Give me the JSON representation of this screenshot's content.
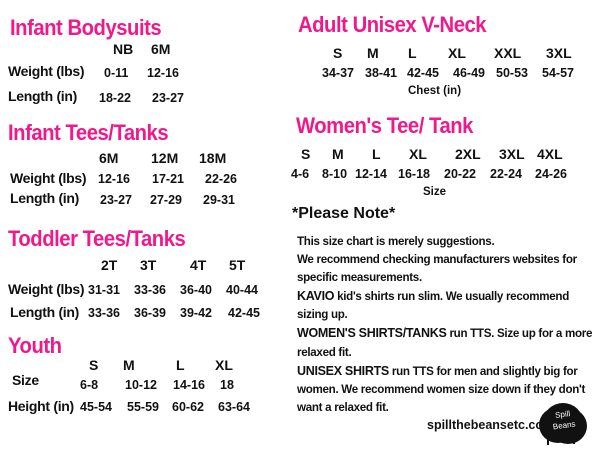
{
  "infant_bodysuits": {
    "title": "Infant Bodysuits",
    "sizes": [
      "NB",
      "6M"
    ],
    "weight_label": "Weight (lbs)",
    "weight": [
      "0-11",
      "12-16"
    ],
    "length_label": "Length (in)",
    "length": [
      "18-22",
      "23-27"
    ]
  },
  "infant_tees": {
    "title": "Infant Tees/Tanks",
    "sizes": [
      "6M",
      "12M",
      "18M"
    ],
    "weight_label": "Weight (lbs)",
    "weight": [
      "12-16",
      "17-21",
      "22-26"
    ],
    "length_label": "Length (in)",
    "length": [
      "23-27",
      "27-29",
      "29-31"
    ]
  },
  "toddler": {
    "title": "Toddler  Tees/Tanks",
    "sizes": [
      "2T",
      "3T",
      "4T",
      "5T"
    ],
    "weight_label": "Weight (lbs)",
    "weight": [
      "31-31",
      "33-36",
      "36-40",
      "40-44"
    ],
    "length_label": "Length (in)",
    "length": [
      "33-36",
      "36-39",
      "39-42",
      "42-45"
    ]
  },
  "youth": {
    "title": "Youth",
    "sizes": [
      "S",
      "M",
      "L",
      "XL"
    ],
    "size_label": "Size",
    "size": [
      "6-8",
      "10-12",
      "14-16",
      "18"
    ],
    "height_label": "Height (in)",
    "height": [
      "45-54",
      "55-59",
      "60-62",
      "63-64"
    ]
  },
  "adult_unisex": {
    "title": "Adult Unisex V-Neck",
    "sizes": [
      "S",
      "M",
      "L",
      "XL",
      "XXL",
      "3XL"
    ],
    "chest": [
      "34-37",
      "38-41",
      "42-45",
      "46-49",
      "50-53",
      "54-57"
    ],
    "chest_label": "Chest (in)"
  },
  "womens": {
    "title": "Women's Tee/ Tank",
    "sizes": [
      "S",
      "M",
      "L",
      "XL",
      "2XL",
      "3XL",
      "4XL"
    ],
    "size": [
      "4-6",
      "8-10",
      "12-14",
      "16-18",
      "20-22",
      "22-24",
      "24-26"
    ],
    "size_label": "Size"
  },
  "note": {
    "title": "*Please Note*",
    "line1": "This size chart is merely suggestions.",
    "line2": "We recommend checking manufacturers websites for specific measurements.",
    "kavio_bold": "KAVIO",
    "kavio": " kid's shirts run slim. We usually recommend sizing up.",
    "womens_bold": "WOMEN'S SHIRTS/TANKS",
    "womens": " run TTS. Size up for a more relaxed fit.",
    "unisex_bold": "UNISEX SHIRTS",
    "unisex": " run TTS for men and slightly big for women. We recommend women size down if they don't want a relaxed fit."
  },
  "footer": {
    "website": "spillthebeansetc.com",
    "logo_text": "Spill the Beans"
  },
  "colors": {
    "accent": "#f0198c",
    "text": "#111111"
  }
}
